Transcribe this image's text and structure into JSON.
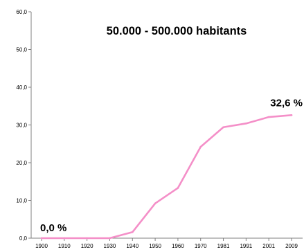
{
  "chart_data": {
    "type": "line",
    "title": "50.000 - 500.000 habitants",
    "xlabel": "",
    "ylabel": "",
    "categories": [
      "1900",
      "1910",
      "1920",
      "1930",
      "1940",
      "1950",
      "1960",
      "1970",
      "1981",
      "1991",
      "2001",
      "2009"
    ],
    "series": [
      {
        "values": [
          0.0,
          0.0,
          0.0,
          0.0,
          1.6,
          9.2,
          13.3,
          24.2,
          29.4,
          30.4,
          32.1,
          32.6
        ]
      }
    ],
    "ylim": [
      0,
      60
    ],
    "yticks": [
      "0,0",
      "10,0",
      "20,0",
      "30,0",
      "40,0",
      "50,0",
      "60,0"
    ],
    "grid": false,
    "legend": "none",
    "data_labels": {
      "first": "0,0 %",
      "last": "32,6 %"
    },
    "colors": {
      "line": "#f48fc8",
      "axis": "#808080",
      "text": "#000000"
    }
  }
}
